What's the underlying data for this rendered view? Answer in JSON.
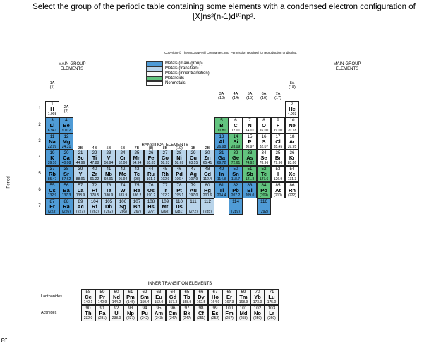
{
  "question": {
    "line1": "Select the group of the periodic table containing some elements with a condensed electron configuration of",
    "line2": "[X]ns²(n-1)d¹⁰np²."
  },
  "side_fragment": "et",
  "copyright": "Copyright © The McGraw-Hill Companies, Inc. Permission required for reproduction or display.",
  "headers": {
    "main_left_line1": "MAIN-GROUP",
    "main_left_line2": "ELEMENTS",
    "main_right_line1": "MAIN-GROUP",
    "main_right_line2": "ELEMENTS",
    "transition": "TRANSITION ELEMENTS",
    "inner_transition": "INNER TRANSITION ELEMENTS",
    "period_axis": "Period",
    "lanthanides": "Lanthanides",
    "actinides": "Actinides"
  },
  "legend": [
    {
      "label": "Metals (main-group)",
      "color": "#4f9bd6"
    },
    {
      "label": "Metals (transition)",
      "color": "#b9d4ea"
    },
    {
      "label": "Metals (inner transition)",
      "color": "#f7f7f7"
    },
    {
      "label": "Metalloids",
      "color": "#62c47f"
    },
    {
      "label": "Nonmetals",
      "color": "#ffffff"
    }
  ],
  "group_labels": [
    {
      "col": 1,
      "a": "1A",
      "b": "(1)"
    },
    {
      "col": 2,
      "a": "2A",
      "b": "(2)"
    },
    {
      "col": 3,
      "a": "3B",
      "b": "(3)"
    },
    {
      "col": 4,
      "a": "4B",
      "b": "(4)"
    },
    {
      "col": 5,
      "a": "5B",
      "b": "(5)"
    },
    {
      "col": 6,
      "a": "6B",
      "b": "(6)"
    },
    {
      "col": 7,
      "a": "7B",
      "b": "(7)"
    },
    {
      "col": 8,
      "a": "",
      "b": "(8)"
    },
    {
      "col": 9,
      "a": "8B",
      "b": "(9)"
    },
    {
      "col": 10,
      "a": "",
      "b": "(10)"
    },
    {
      "col": 11,
      "a": "1B",
      "b": "(11)"
    },
    {
      "col": 12,
      "a": "2B",
      "b": "(12)"
    },
    {
      "col": 13,
      "a": "3A",
      "b": "(13)"
    },
    {
      "col": 14,
      "a": "4A",
      "b": "(14)"
    },
    {
      "col": 15,
      "a": "5A",
      "b": "(15)"
    },
    {
      "col": 16,
      "a": "6A",
      "b": "(16)"
    },
    {
      "col": 17,
      "a": "7A",
      "b": "(17)"
    },
    {
      "col": 18,
      "a": "8A",
      "b": "(18)"
    }
  ],
  "period_numbers": [
    "1",
    "2",
    "3",
    "4",
    "5",
    "6",
    "7"
  ],
  "elements": [
    {
      "z": "1",
      "s": "H",
      "m": "1.008",
      "r": 1,
      "c": 1,
      "t": "nonmetal"
    },
    {
      "z": "2",
      "s": "He",
      "m": "4.003",
      "r": 1,
      "c": 18,
      "t": "nonmetal"
    },
    {
      "z": "3",
      "s": "Li",
      "m": "6.941",
      "r": 2,
      "c": 1,
      "t": "main"
    },
    {
      "z": "4",
      "s": "Be",
      "m": "9.012",
      "r": 2,
      "c": 2,
      "t": "main"
    },
    {
      "z": "5",
      "s": "B",
      "m": "10.81",
      "r": 2,
      "c": 13,
      "t": "metalloid"
    },
    {
      "z": "6",
      "s": "C",
      "m": "12.01",
      "r": 2,
      "c": 14,
      "t": "nonmetal"
    },
    {
      "z": "7",
      "s": "N",
      "m": "14.01",
      "r": 2,
      "c": 15,
      "t": "nonmetal"
    },
    {
      "z": "8",
      "s": "O",
      "m": "16.00",
      "r": 2,
      "c": 16,
      "t": "nonmetal"
    },
    {
      "z": "9",
      "s": "F",
      "m": "19.00",
      "r": 2,
      "c": 17,
      "t": "nonmetal"
    },
    {
      "z": "10",
      "s": "Ne",
      "m": "20.18",
      "r": 2,
      "c": 18,
      "t": "nonmetal"
    },
    {
      "z": "11",
      "s": "Na",
      "m": "22.99",
      "r": 3,
      "c": 1,
      "t": "main"
    },
    {
      "z": "12",
      "s": "Mg",
      "m": "24.31",
      "r": 3,
      "c": 2,
      "t": "main"
    },
    {
      "z": "13",
      "s": "Al",
      "m": "26.98",
      "r": 3,
      "c": 13,
      "t": "main"
    },
    {
      "z": "14",
      "s": "Si",
      "m": "28.09",
      "r": 3,
      "c": 14,
      "t": "metalloid"
    },
    {
      "z": "15",
      "s": "P",
      "m": "30.97",
      "r": 3,
      "c": 15,
      "t": "nonmetal"
    },
    {
      "z": "16",
      "s": "S",
      "m": "32.07",
      "r": 3,
      "c": 16,
      "t": "nonmetal"
    },
    {
      "z": "17",
      "s": "Cl",
      "m": "35.45",
      "r": 3,
      "c": 17,
      "t": "nonmetal"
    },
    {
      "z": "18",
      "s": "Ar",
      "m": "39.95",
      "r": 3,
      "c": 18,
      "t": "nonmetal"
    },
    {
      "z": "19",
      "s": "K",
      "m": "39.10",
      "r": 4,
      "c": 1,
      "t": "main"
    },
    {
      "z": "20",
      "s": "Ca",
      "m": "40.08",
      "r": 4,
      "c": 2,
      "t": "main"
    },
    {
      "z": "21",
      "s": "Sc",
      "m": "44.96",
      "r": 4,
      "c": 3,
      "t": "trans"
    },
    {
      "z": "22",
      "s": "Ti",
      "m": "47.88",
      "r": 4,
      "c": 4,
      "t": "trans"
    },
    {
      "z": "23",
      "s": "V",
      "m": "50.94",
      "r": 4,
      "c": 5,
      "t": "trans"
    },
    {
      "z": "24",
      "s": "Cr",
      "m": "52.00",
      "r": 4,
      "c": 6,
      "t": "trans"
    },
    {
      "z": "25",
      "s": "Mn",
      "m": "54.94",
      "r": 4,
      "c": 7,
      "t": "trans"
    },
    {
      "z": "26",
      "s": "Fe",
      "m": "55.85",
      "r": 4,
      "c": 8,
      "t": "trans"
    },
    {
      "z": "27",
      "s": "Co",
      "m": "58.93",
      "r": 4,
      "c": 9,
      "t": "trans"
    },
    {
      "z": "28",
      "s": "Ni",
      "m": "58.69",
      "r": 4,
      "c": 10,
      "t": "trans"
    },
    {
      "z": "29",
      "s": "Cu",
      "m": "63.55",
      "r": 4,
      "c": 11,
      "t": "trans"
    },
    {
      "z": "30",
      "s": "Zn",
      "m": "65.41",
      "r": 4,
      "c": 12,
      "t": "trans"
    },
    {
      "z": "31",
      "s": "Ga",
      "m": "69.72",
      "r": 4,
      "c": 13,
      "t": "main"
    },
    {
      "z": "32",
      "s": "Ge",
      "m": "72.61",
      "r": 4,
      "c": 14,
      "t": "metalloid"
    },
    {
      "z": "33",
      "s": "As",
      "m": "74.92",
      "r": 4,
      "c": 15,
      "t": "metalloid"
    },
    {
      "z": "34",
      "s": "Se",
      "m": "78.96",
      "r": 4,
      "c": 16,
      "t": "nonmetal"
    },
    {
      "z": "35",
      "s": "Br",
      "m": "79.90",
      "r": 4,
      "c": 17,
      "t": "nonmetal"
    },
    {
      "z": "36",
      "s": "Kr",
      "m": "83.80",
      "r": 4,
      "c": 18,
      "t": "nonmetal"
    },
    {
      "z": "37",
      "s": "Rb",
      "m": "85.47",
      "r": 5,
      "c": 1,
      "t": "main"
    },
    {
      "z": "38",
      "s": "Sr",
      "m": "87.62",
      "r": 5,
      "c": 2,
      "t": "main"
    },
    {
      "z": "39",
      "s": "Y",
      "m": "88.91",
      "r": 5,
      "c": 3,
      "t": "trans"
    },
    {
      "z": "40",
      "s": "Zr",
      "m": "91.22",
      "r": 5,
      "c": 4,
      "t": "trans"
    },
    {
      "z": "41",
      "s": "Nb",
      "m": "92.91",
      "r": 5,
      "c": 5,
      "t": "trans"
    },
    {
      "z": "42",
      "s": "Mo",
      "m": "95.94",
      "r": 5,
      "c": 6,
      "t": "trans"
    },
    {
      "z": "43",
      "s": "Tc",
      "m": "(98)",
      "r": 5,
      "c": 7,
      "t": "trans"
    },
    {
      "z": "44",
      "s": "Ru",
      "m": "101.1",
      "r": 5,
      "c": 8,
      "t": "trans"
    },
    {
      "z": "45",
      "s": "Rh",
      "m": "102.9",
      "r": 5,
      "c": 9,
      "t": "trans"
    },
    {
      "z": "46",
      "s": "Pd",
      "m": "106.4",
      "r": 5,
      "c": 10,
      "t": "trans"
    },
    {
      "z": "47",
      "s": "Ag",
      "m": "107.9",
      "r": 5,
      "c": 11,
      "t": "trans"
    },
    {
      "z": "48",
      "s": "Cd",
      "m": "112.4",
      "r": 5,
      "c": 12,
      "t": "trans"
    },
    {
      "z": "49",
      "s": "In",
      "m": "114.8",
      "r": 5,
      "c": 13,
      "t": "main"
    },
    {
      "z": "50",
      "s": "Sn",
      "m": "118.7",
      "r": 5,
      "c": 14,
      "t": "main"
    },
    {
      "z": "51",
      "s": "Sb",
      "m": "121.8",
      "r": 5,
      "c": 15,
      "t": "metalloid"
    },
    {
      "z": "52",
      "s": "Te",
      "m": "127.6",
      "r": 5,
      "c": 16,
      "t": "metalloid"
    },
    {
      "z": "53",
      "s": "I",
      "m": "126.9",
      "r": 5,
      "c": 17,
      "t": "nonmetal"
    },
    {
      "z": "54",
      "s": "Xe",
      "m": "131.3",
      "r": 5,
      "c": 18,
      "t": "nonmetal"
    },
    {
      "z": "55",
      "s": "Cs",
      "m": "132.9",
      "r": 6,
      "c": 1,
      "t": "main"
    },
    {
      "z": "56",
      "s": "Ba",
      "m": "137.3",
      "r": 6,
      "c": 2,
      "t": "main"
    },
    {
      "z": "57",
      "s": "La",
      "m": "138.9",
      "r": 6,
      "c": 3,
      "t": "trans"
    },
    {
      "z": "72",
      "s": "Hf",
      "m": "178.5",
      "r": 6,
      "c": 4,
      "t": "trans"
    },
    {
      "z": "73",
      "s": "Ta",
      "m": "180.9",
      "r": 6,
      "c": 5,
      "t": "trans"
    },
    {
      "z": "74",
      "s": "W",
      "m": "183.9",
      "r": 6,
      "c": 6,
      "t": "trans"
    },
    {
      "z": "75",
      "s": "Re",
      "m": "186.2",
      "r": 6,
      "c": 7,
      "t": "trans"
    },
    {
      "z": "76",
      "s": "Os",
      "m": "190.2",
      "r": 6,
      "c": 8,
      "t": "trans"
    },
    {
      "z": "77",
      "s": "Ir",
      "m": "192.2",
      "r": 6,
      "c": 9,
      "t": "trans"
    },
    {
      "z": "78",
      "s": "Pt",
      "m": "195.1",
      "r": 6,
      "c": 10,
      "t": "trans"
    },
    {
      "z": "79",
      "s": "Au",
      "m": "197.0",
      "r": 6,
      "c": 11,
      "t": "trans"
    },
    {
      "z": "80",
      "s": "Hg",
      "m": "200.6",
      "r": 6,
      "c": 12,
      "t": "trans"
    },
    {
      "z": "81",
      "s": "Tl",
      "m": "204.4",
      "r": 6,
      "c": 13,
      "t": "main"
    },
    {
      "z": "82",
      "s": "Pb",
      "m": "207.2",
      "r": 6,
      "c": 14,
      "t": "main"
    },
    {
      "z": "83",
      "s": "Bi",
      "m": "209.0",
      "r": 6,
      "c": 15,
      "t": "main"
    },
    {
      "z": "84",
      "s": "Po",
      "m": "(209)",
      "r": 6,
      "c": 16,
      "t": "metalloid"
    },
    {
      "z": "85",
      "s": "At",
      "m": "(210)",
      "r": 6,
      "c": 17,
      "t": "nonmetal"
    },
    {
      "z": "86",
      "s": "Rn",
      "m": "(222)",
      "r": 6,
      "c": 18,
      "t": "nonmetal"
    },
    {
      "z": "87",
      "s": "Fr",
      "m": "(223)",
      "r": 7,
      "c": 1,
      "t": "main"
    },
    {
      "z": "88",
      "s": "Ra",
      "m": "(226)",
      "r": 7,
      "c": 2,
      "t": "main"
    },
    {
      "z": "89",
      "s": "Ac",
      "m": "(227)",
      "r": 7,
      "c": 3,
      "t": "trans"
    },
    {
      "z": "104",
      "s": "Rf",
      "m": "(263)",
      "r": 7,
      "c": 4,
      "t": "trans"
    },
    {
      "z": "105",
      "s": "Db",
      "m": "(262)",
      "r": 7,
      "c": 5,
      "t": "trans"
    },
    {
      "z": "106",
      "s": "Sg",
      "m": "(266)",
      "r": 7,
      "c": 6,
      "t": "trans"
    },
    {
      "z": "107",
      "s": "Bh",
      "m": "(267)",
      "r": 7,
      "c": 7,
      "t": "trans"
    },
    {
      "z": "108",
      "s": "Hs",
      "m": "(277)",
      "r": 7,
      "c": 8,
      "t": "trans"
    },
    {
      "z": "109",
      "s": "Mt",
      "m": "(268)",
      "r": 7,
      "c": 9,
      "t": "trans"
    },
    {
      "z": "110",
      "s": "Ds",
      "m": "(281)",
      "r": 7,
      "c": 10,
      "t": "trans"
    },
    {
      "z": "111",
      "s": "",
      "m": "(272)",
      "r": 7,
      "c": 11,
      "t": "trans"
    },
    {
      "z": "112",
      "s": "",
      "m": "(285)",
      "r": 7,
      "c": 12,
      "t": "trans"
    },
    {
      "z": "114",
      "s": "",
      "m": "(289)",
      "r": 7,
      "c": 14,
      "t": "main"
    },
    {
      "z": "116",
      "s": "",
      "m": "(292)",
      "r": 7,
      "c": 16,
      "t": "main"
    }
  ],
  "inner_elements": [
    {
      "z": "58",
      "s": "Ce",
      "m": "140.1",
      "r": 1,
      "c": 1
    },
    {
      "z": "59",
      "s": "Pr",
      "m": "140.9",
      "r": 1,
      "c": 2
    },
    {
      "z": "60",
      "s": "Nd",
      "m": "144.2",
      "r": 1,
      "c": 3
    },
    {
      "z": "61",
      "s": "Pm",
      "m": "(145)",
      "r": 1,
      "c": 4
    },
    {
      "z": "62",
      "s": "Sm",
      "m": "150.4",
      "r": 1,
      "c": 5
    },
    {
      "z": "63",
      "s": "Eu",
      "m": "152.0",
      "r": 1,
      "c": 6
    },
    {
      "z": "64",
      "s": "Gd",
      "m": "157.3",
      "r": 1,
      "c": 7
    },
    {
      "z": "65",
      "s": "Tb",
      "m": "158.9",
      "r": 1,
      "c": 8
    },
    {
      "z": "66",
      "s": "Dy",
      "m": "162.5",
      "r": 1,
      "c": 9
    },
    {
      "z": "67",
      "s": "Ho",
      "m": "164.9",
      "r": 1,
      "c": 10
    },
    {
      "z": "68",
      "s": "Er",
      "m": "167.3",
      "r": 1,
      "c": 11
    },
    {
      "z": "69",
      "s": "Tm",
      "m": "168.9",
      "r": 1,
      "c": 12
    },
    {
      "z": "70",
      "s": "Yb",
      "m": "173.0",
      "r": 1,
      "c": 13
    },
    {
      "z": "71",
      "s": "Lu",
      "m": "175.0",
      "r": 1,
      "c": 14
    },
    {
      "z": "90",
      "s": "Th",
      "m": "232.0",
      "r": 2,
      "c": 1
    },
    {
      "z": "91",
      "s": "Pa",
      "m": "(231)",
      "r": 2,
      "c": 2
    },
    {
      "z": "92",
      "s": "U",
      "m": "238.0",
      "r": 2,
      "c": 3
    },
    {
      "z": "93",
      "s": "Np",
      "m": "(237)",
      "r": 2,
      "c": 4
    },
    {
      "z": "94",
      "s": "Pu",
      "m": "(242)",
      "r": 2,
      "c": 5
    },
    {
      "z": "95",
      "s": "Am",
      "m": "(243)",
      "r": 2,
      "c": 6
    },
    {
      "z": "96",
      "s": "Cm",
      "m": "(247)",
      "r": 2,
      "c": 7
    },
    {
      "z": "97",
      "s": "Bk",
      "m": "(247)",
      "r": 2,
      "c": 8
    },
    {
      "z": "98",
      "s": "Cf",
      "m": "(251)",
      "r": 2,
      "c": 9
    },
    {
      "z": "99",
      "s": "Es",
      "m": "(252)",
      "r": 2,
      "c": 10
    },
    {
      "z": "100",
      "s": "Fm",
      "m": "(257)",
      "r": 2,
      "c": 11
    },
    {
      "z": "101",
      "s": "Md",
      "m": "(258)",
      "r": 2,
      "c": 12
    },
    {
      "z": "102",
      "s": "No",
      "m": "(259)",
      "r": 2,
      "c": 13
    },
    {
      "z": "103",
      "s": "Lr",
      "m": "(260)",
      "r": 2,
      "c": 14
    }
  ]
}
